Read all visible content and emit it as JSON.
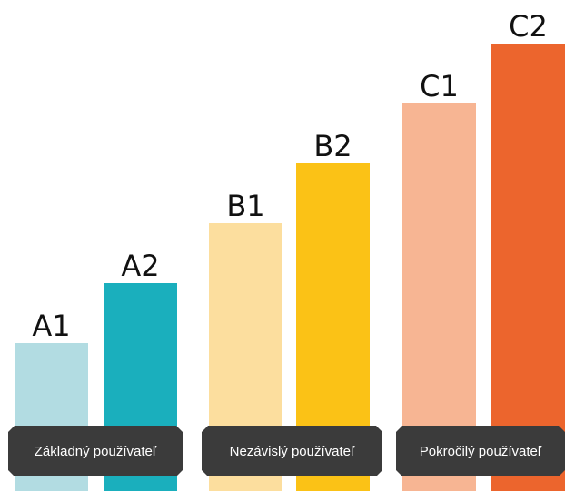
{
  "chart_data": {
    "type": "bar",
    "categories": [
      "A1",
      "A2",
      "B1",
      "B2",
      "C1",
      "C2"
    ],
    "values": [
      1,
      2,
      3,
      4,
      5,
      6
    ],
    "groups": [
      {
        "label": "Základný používateľ",
        "members": [
          "A1",
          "A2"
        ]
      },
      {
        "label": "Nezávislý používateľ",
        "members": [
          "B1",
          "B2"
        ]
      },
      {
        "label": "Pokročilý používateľ",
        "members": [
          "C1",
          "C2"
        ]
      }
    ],
    "colors": [
      "#b2dce2",
      "#1aafbd",
      "#fcde9e",
      "#fbc216",
      "#f7b593",
      "#ec652d"
    ],
    "group_label_color": "#3b3b3b",
    "ylim": [
      0,
      6
    ],
    "grid": false,
    "legend": "none"
  }
}
